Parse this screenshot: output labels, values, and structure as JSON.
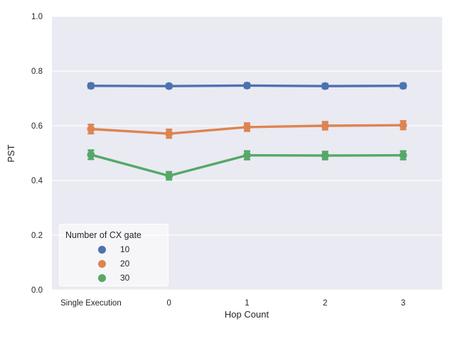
{
  "chart_data": {
    "type": "line",
    "title": "",
    "xlabel": "Hop Count",
    "ylabel": "PST",
    "categories": [
      "Single Execution",
      "0",
      "1",
      "2",
      "3"
    ],
    "series": [
      {
        "name": "10",
        "color": "#4C72B0",
        "values": [
          0.746,
          0.745,
          0.747,
          0.745,
          0.746
        ],
        "err": [
          0.008,
          0.007,
          0.008,
          0.008,
          0.008
        ]
      },
      {
        "name": "20",
        "color": "#DD8452",
        "values": [
          0.588,
          0.571,
          0.595,
          0.6,
          0.602
        ],
        "err": [
          0.016,
          0.015,
          0.014,
          0.014,
          0.015
        ]
      },
      {
        "name": "30",
        "color": "#55A868",
        "values": [
          0.494,
          0.417,
          0.492,
          0.491,
          0.492
        ],
        "err": [
          0.016,
          0.014,
          0.015,
          0.014,
          0.015
        ]
      }
    ],
    "ylim": [
      0.0,
      1.0
    ],
    "yticks": [
      0.0,
      0.2,
      0.4,
      0.6,
      0.8,
      1.0
    ],
    "grid": "horizontal",
    "legend": {
      "title": "Number of CX gate",
      "position": "lower left"
    },
    "plot_bg": "#EAEAF2",
    "grid_color": "#FFFFFF",
    "text_color": "#262626"
  }
}
